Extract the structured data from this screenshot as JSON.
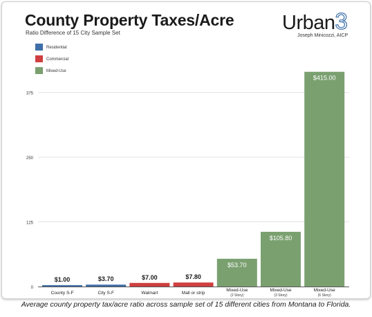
{
  "title": "County Property Taxes/Acre",
  "subtitle": "Ratio Difference of 15 City Sample Set",
  "brand": {
    "word": "Urban",
    "number": "3",
    "author": "Joseph Minicozzi, AICP"
  },
  "caption": "Average county property tax/acre ratio across sample set of 15 different cities from Montana to Florida.",
  "chart_data": {
    "type": "bar",
    "title": "County Property Taxes/Acre",
    "subtitle": "Ratio Difference of 15 City Sample Set",
    "ylim": [
      0,
      420
    ],
    "yticks": [
      0,
      125,
      250,
      375
    ],
    "grid": true,
    "legend_position": "top-left",
    "legend": [
      {
        "name": "Residential",
        "color": "#3f6ea8"
      },
      {
        "name": "Commercial",
        "color": "#cf3f3f"
      },
      {
        "name": "Mixed-Use",
        "color": "#7aa070"
      }
    ],
    "bars": [
      {
        "label": "County S-F",
        "sublabel": "",
        "value": 1.0,
        "value_label": "$1.00",
        "group": "Residential",
        "label_inside": false
      },
      {
        "label": "City S-F",
        "sublabel": "",
        "value": 3.7,
        "value_label": "$3.70",
        "group": "Residential",
        "label_inside": false
      },
      {
        "label": "Walmart",
        "sublabel": "",
        "value": 7.0,
        "value_label": "$7.00",
        "group": "Commercial",
        "label_inside": false
      },
      {
        "label": "Mall or strip",
        "sublabel": "",
        "value": 7.8,
        "value_label": "$7.80",
        "group": "Commercial",
        "label_inside": false
      },
      {
        "label": "Mixed-Use",
        "sublabel": "(2 Story)",
        "value": 53.7,
        "value_label": "$53.70",
        "group": "Mixed-Use",
        "label_inside": true
      },
      {
        "label": "Mixed-Use",
        "sublabel": "(3 Story)",
        "value": 105.8,
        "value_label": "$105.80",
        "group": "Mixed-Use",
        "label_inside": true
      },
      {
        "label": "Mixed-Use",
        "sublabel": "(6 Story)",
        "value": 415.0,
        "value_label": "$415.00",
        "group": "Mixed-Use",
        "label_inside": true
      }
    ]
  }
}
